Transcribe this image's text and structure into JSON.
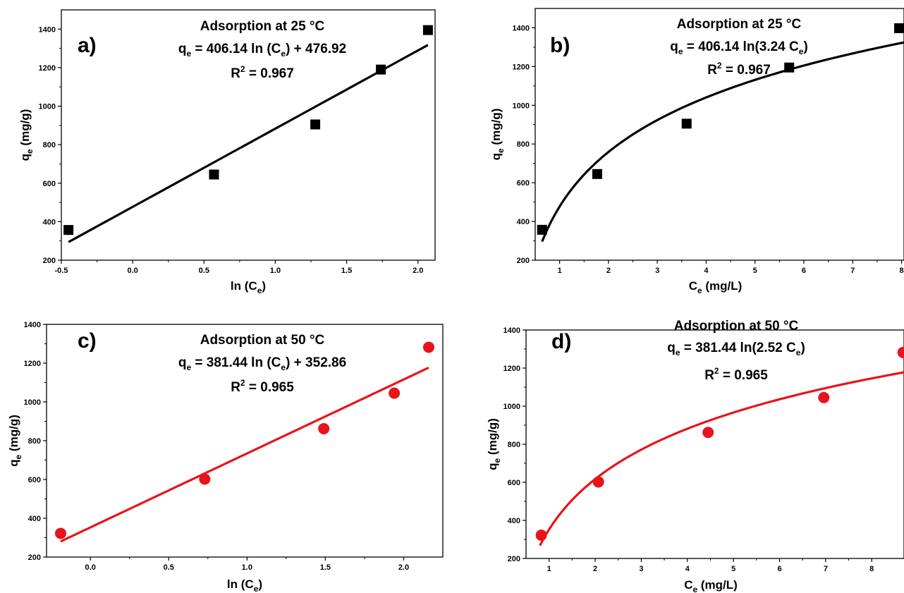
{
  "chart_data": [
    {
      "panel": "a)",
      "type": "scatter",
      "annotations": {
        "title": "Adsorption at 25 °C",
        "equation": [
          "q",
          "e",
          " = 406.14 ln (C",
          "e",
          ") + 476.92"
        ],
        "r2": [
          "R",
          "2",
          " = 0.967"
        ]
      },
      "xlabel": [
        "ln (C",
        "e",
        ")"
      ],
      "ylabel": [
        "q",
        "e",
        " (mg/g)"
      ],
      "xlim": [
        -0.5,
        2.12
      ],
      "ylim": [
        200,
        1500
      ],
      "xticks": [
        -0.5,
        0.0,
        0.5,
        1.0,
        1.5,
        2.0
      ],
      "xtick_labels": [
        "-0.5",
        "0.0",
        "0.5",
        "1.0",
        "1.5",
        "2.0"
      ],
      "yticks": [
        200,
        400,
        600,
        800,
        1000,
        1200,
        1400
      ],
      "ytick_labels": [
        "200",
        "400",
        "600",
        "800",
        "1000",
        "1200",
        "1400"
      ],
      "points": {
        "x": [
          -0.45,
          0.57,
          1.28,
          1.74,
          2.07
        ],
        "y": [
          357,
          645,
          905,
          1190,
          1395
        ]
      },
      "fit": {
        "kind": "linear",
        "a": 406.14,
        "b": 476.92,
        "x_range": [
          -0.45,
          2.07
        ]
      },
      "color": "#000000",
      "marker": "square"
    },
    {
      "panel": "b)",
      "type": "scatter",
      "annotations": {
        "title": "Adsorption at 25 °C",
        "equation": [
          "q",
          "e",
          " = 406.14 ln(3.24 C",
          "e",
          ")"
        ],
        "r2": [
          "R",
          "2",
          " = 0.967"
        ]
      },
      "xlabel": [
        "C",
        "e",
        " (mg/L)"
      ],
      "ylabel": [
        "q",
        "e",
        " (mg/g)"
      ],
      "xlim": [
        0.5,
        8.05
      ],
      "ylim": [
        200,
        1500
      ],
      "xticks": [
        1,
        2,
        3,
        4,
        5,
        6,
        7,
        8
      ],
      "xtick_labels": [
        "1",
        "2",
        "3",
        "4",
        "5",
        "6",
        "7",
        "8"
      ],
      "yticks": [
        200,
        400,
        600,
        800,
        1000,
        1200,
        1400
      ],
      "ytick_labels": [
        "200",
        "400",
        "600",
        "800",
        "1000",
        "1200",
        "1400"
      ],
      "points": {
        "x": [
          0.64,
          1.77,
          3.6,
          5.7,
          7.95
        ],
        "y": [
          357,
          645,
          905,
          1195,
          1398
        ]
      },
      "fit": {
        "kind": "log",
        "a": 406.14,
        "k": 3.24,
        "x_range": [
          0.64,
          8.05
        ]
      },
      "color": "#000000",
      "marker": "square"
    },
    {
      "panel": "c)",
      "type": "scatter",
      "annotations": {
        "title": "Adsorption at 50 °C",
        "equation": [
          "q",
          "e",
          " = 381.44 ln (C",
          "e",
          ") + 352.86"
        ],
        "r2": [
          "R",
          "2",
          " = 0.965"
        ]
      },
      "xlabel": [
        "ln (C",
        "e",
        ")"
      ],
      "ylabel": [
        "q",
        "e",
        " (mg/g)"
      ],
      "xlim": [
        -0.28,
        2.25
      ],
      "ylim": [
        200,
        1400
      ],
      "xticks": [
        0.0,
        0.5,
        1.0,
        1.5,
        2.0
      ],
      "xtick_labels": [
        "0.0",
        "0.5",
        "1.0",
        "1.5",
        "2.0"
      ],
      "yticks": [
        200,
        400,
        600,
        800,
        1000,
        1200,
        1400
      ],
      "ytick_labels": [
        "200",
        "400",
        "600",
        "800",
        "1000",
        "1200",
        "1400"
      ],
      "points": {
        "x": [
          -0.19,
          0.73,
          1.49,
          1.94,
          2.16
        ],
        "y": [
          322,
          602,
          862,
          1045,
          1282
        ]
      },
      "fit": {
        "kind": "linear",
        "a": 381.44,
        "b": 352.86,
        "x_range": [
          -0.19,
          2.16
        ]
      },
      "color": "#e8141b",
      "marker": "circle"
    },
    {
      "panel": "d)",
      "type": "scatter",
      "annotations": {
        "title": "Adsorption at 50 °C",
        "equation": [
          "q",
          "e",
          " = 381.44 ln(2.52 C",
          "e",
          ")"
        ],
        "r2": [
          "R",
          "2",
          " = 0.965"
        ]
      },
      "xlabel": [
        "C",
        "e",
        " (mg/L)"
      ],
      "ylabel": [
        "q",
        "e",
        " (mg/g)"
      ],
      "xlim": [
        0.5,
        8.7
      ],
      "ylim": [
        200,
        1400
      ],
      "xticks": [
        1,
        2,
        3,
        4,
        5,
        6,
        7,
        8
      ],
      "xtick_labels": [
        "1",
        "2",
        "3",
        "4",
        "5",
        "6",
        "7",
        "8"
      ],
      "yticks": [
        200,
        400,
        600,
        800,
        1000,
        1200,
        1400
      ],
      "ytick_labels": [
        "200",
        "400",
        "600",
        "800",
        "1000",
        "1200",
        "1400"
      ],
      "points": {
        "x": [
          0.83,
          2.07,
          4.45,
          6.96,
          8.68
        ],
        "y": [
          322,
          602,
          862,
          1045,
          1282
        ]
      },
      "fit": {
        "kind": "log",
        "a": 381.44,
        "k": 2.52,
        "x_range": [
          0.8,
          8.7
        ]
      },
      "color": "#e8141b",
      "marker": "circle"
    }
  ]
}
